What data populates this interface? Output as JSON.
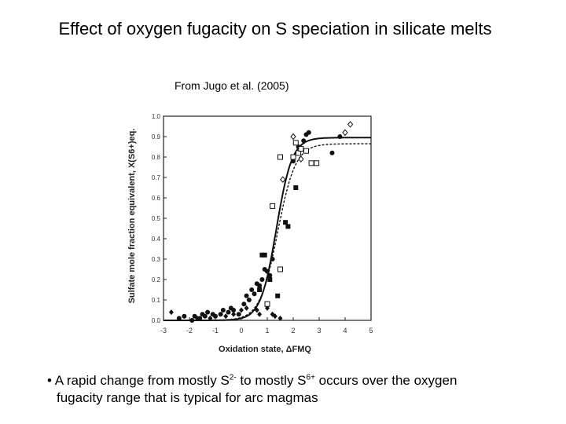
{
  "title": "Effect of oxygen fugacity on S speciation in silicate melts",
  "source": "From Jugo et al. (2005)",
  "bullet": {
    "marker": "•",
    "part1": "A rapid change from mostly S",
    "sup1": "2-",
    "part2": " to mostly S",
    "sup2": "6+",
    "part3": " occurs over the oxygen",
    "line2": "fugacity range that is typical for arc magmas"
  },
  "chart_data": {
    "type": "scatter",
    "xlabel": "Oxidation state, ΔFMQ",
    "ylabel": "Sulfate mole fraction equivalent, X(S6+)eq.",
    "xlim": [
      -3,
      5
    ],
    "ylim": [
      0,
      1.0
    ],
    "x_ticks": [
      "-3",
      "-2",
      "-1",
      "0",
      "1",
      "2",
      "3",
      "4",
      "5"
    ],
    "y_ticks": [
      "0.0",
      "0.1",
      "0.2",
      "0.3",
      "0.4",
      "0.5",
      "0.6",
      "0.7",
      "0.8",
      "0.9",
      "1.0"
    ],
    "grid": false,
    "curves": [
      {
        "name": "solid fit",
        "style": "solid",
        "x0": 1.35,
        "k": 3.3,
        "max": 0.895
      },
      {
        "name": "dashed fit",
        "style": "dashed",
        "x0": 1.4,
        "k": 2.9,
        "max": 0.865
      }
    ],
    "series": [
      {
        "name": "filled circles",
        "marker": "filled-circle",
        "points": [
          [
            -2.4,
            0.01
          ],
          [
            -2.2,
            0.02
          ],
          [
            -1.9,
            0.0
          ],
          [
            -1.8,
            0.02
          ],
          [
            -1.6,
            0.01
          ],
          [
            -1.5,
            0.03
          ],
          [
            -1.4,
            0.02
          ],
          [
            -1.3,
            0.04
          ],
          [
            -1.1,
            0.03
          ],
          [
            -1.0,
            0.02
          ],
          [
            -0.8,
            0.03
          ],
          [
            -0.7,
            0.05
          ],
          [
            -0.5,
            0.04
          ],
          [
            -0.4,
            0.06
          ],
          [
            -0.3,
            0.05
          ],
          [
            -0.1,
            0.03
          ],
          [
            0.1,
            0.08
          ],
          [
            0.2,
            0.12
          ],
          [
            0.3,
            0.1
          ],
          [
            0.4,
            0.15
          ],
          [
            0.5,
            0.13
          ],
          [
            0.6,
            0.18
          ],
          [
            0.7,
            0.17
          ],
          [
            0.8,
            0.2
          ],
          [
            0.9,
            0.25
          ],
          [
            1.0,
            0.24
          ],
          [
            1.1,
            0.22
          ],
          [
            1.2,
            0.3
          ],
          [
            2.0,
            0.78
          ],
          [
            2.2,
            0.85
          ],
          [
            2.4,
            0.88
          ],
          [
            2.5,
            0.91
          ],
          [
            2.6,
            0.92
          ],
          [
            3.5,
            0.82
          ],
          [
            3.8,
            0.9
          ]
        ]
      },
      {
        "name": "filled squares",
        "marker": "filled-square",
        "points": [
          [
            0.7,
            0.15
          ],
          [
            0.8,
            0.32
          ],
          [
            0.9,
            0.32
          ],
          [
            1.1,
            0.2
          ],
          [
            1.4,
            0.12
          ],
          [
            1.7,
            0.48
          ],
          [
            1.8,
            0.46
          ],
          [
            2.1,
            0.65
          ]
        ]
      },
      {
        "name": "filled diamonds",
        "marker": "filled-diamond",
        "points": [
          [
            -2.7,
            0.04
          ],
          [
            -1.7,
            0.01
          ],
          [
            -1.2,
            0.01
          ],
          [
            -0.6,
            0.02
          ],
          [
            -0.3,
            0.03
          ],
          [
            0.0,
            0.05
          ],
          [
            0.2,
            0.06
          ],
          [
            0.6,
            0.05
          ],
          [
            0.7,
            0.03
          ],
          [
            1.0,
            0.06
          ],
          [
            1.2,
            0.03
          ],
          [
            1.3,
            0.02
          ],
          [
            1.5,
            0.01
          ]
        ]
      },
      {
        "name": "open squares",
        "marker": "open-square",
        "points": [
          [
            1.0,
            0.08
          ],
          [
            1.2,
            0.56
          ],
          [
            1.5,
            0.25
          ],
          [
            1.5,
            0.8
          ],
          [
            2.0,
            0.8
          ],
          [
            2.1,
            0.87
          ],
          [
            2.2,
            0.82
          ],
          [
            2.3,
            0.84
          ],
          [
            2.5,
            0.83
          ],
          [
            2.7,
            0.77
          ],
          [
            2.9,
            0.77
          ]
        ]
      },
      {
        "name": "open diamonds",
        "marker": "open-diamond",
        "points": [
          [
            1.6,
            0.69
          ],
          [
            2.0,
            0.9
          ],
          [
            2.3,
            0.79
          ],
          [
            4.0,
            0.92
          ],
          [
            4.2,
            0.96
          ]
        ]
      }
    ]
  }
}
